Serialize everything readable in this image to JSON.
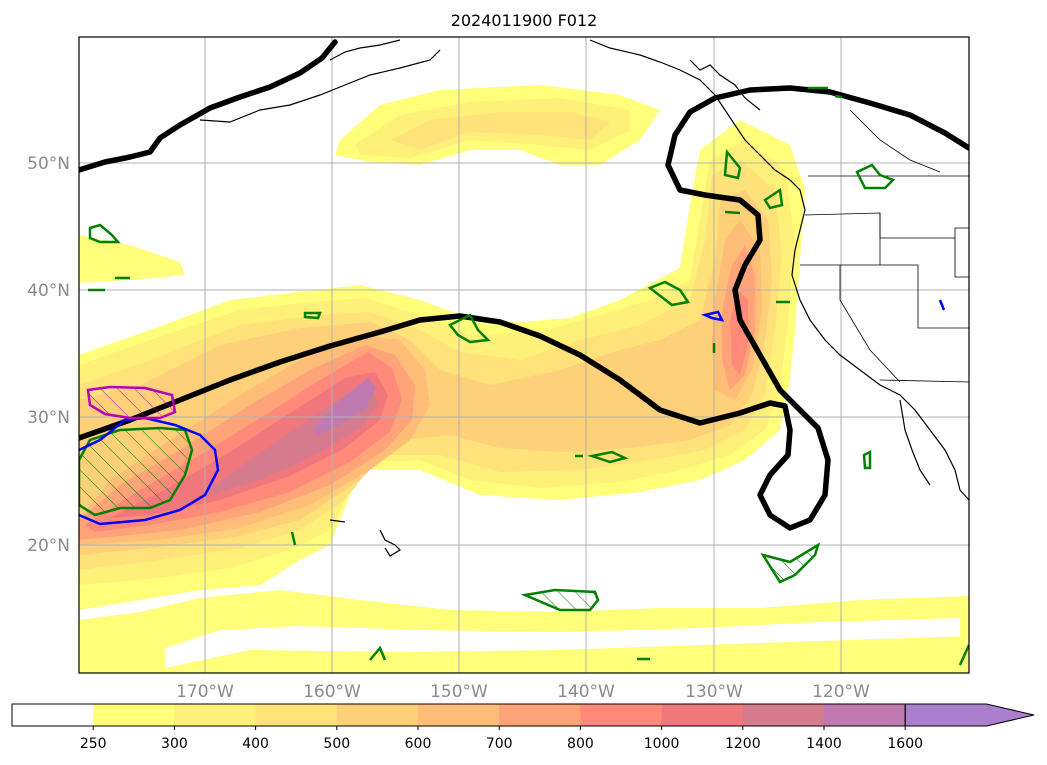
{
  "title": "2024011900 F012",
  "lat_labels": [
    "50°N",
    "40°N",
    "30°N",
    "20°N"
  ],
  "lon_labels": [
    "170°W",
    "160°W",
    "150°W",
    "140°W",
    "130°W",
    "120°W"
  ],
  "colorbar": {
    "ticks": [
      "250",
      "300",
      "400",
      "500",
      "600",
      "700",
      "800",
      "1000",
      "1200",
      "1400",
      "1600"
    ],
    "colors": [
      "#ffffff",
      "#ffff7a",
      "#fff07a",
      "#ffe27a",
      "#ffd07a",
      "#ffbd78",
      "#ffa478",
      "#ff8a7a",
      "#f0787c",
      "#d67a8e",
      "#c07ab2",
      "#ab7fce"
    ]
  },
  "colors": {
    "jet_contour": "#000000",
    "green_contour": "#008000",
    "blue_contour": "#0000ff",
    "magenta_contour": "#bb00bb"
  }
}
